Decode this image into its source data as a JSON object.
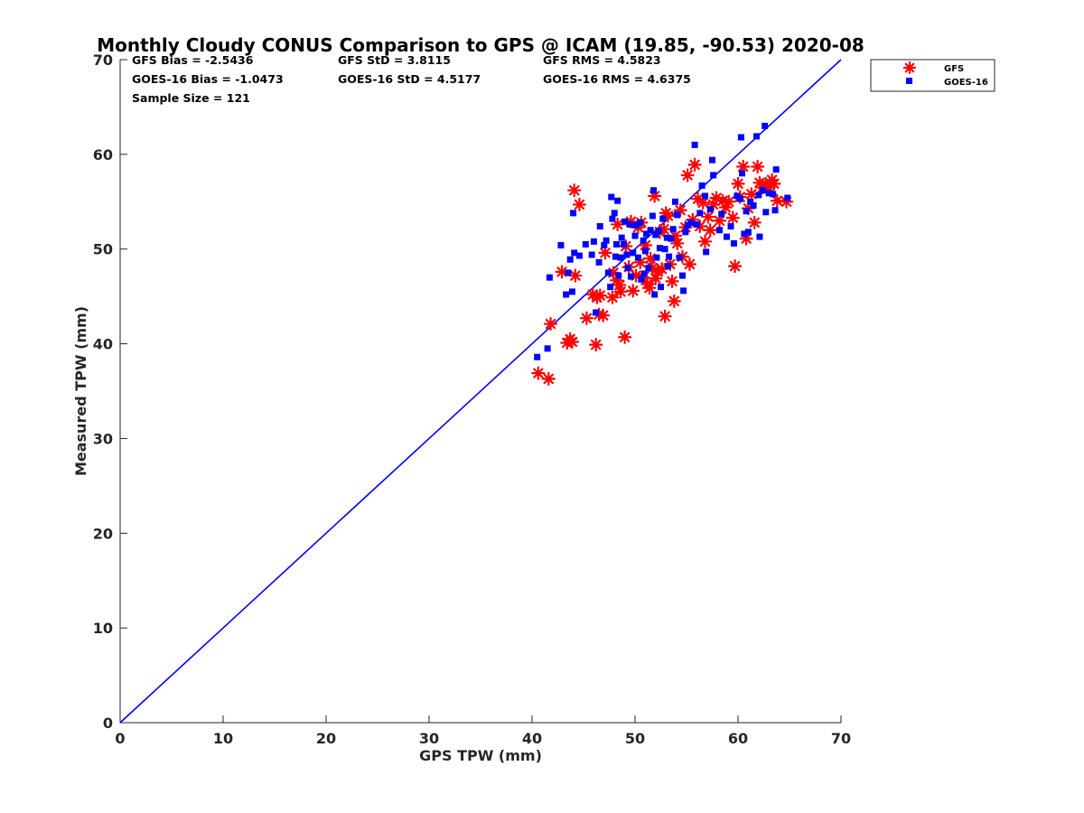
{
  "chart_data": {
    "type": "scatter",
    "title": "Monthly Cloudy CONUS Comparison to GPS @ ICAM (19.85, -90.53) 2020-08",
    "xlabel": "GPS TPW (mm)",
    "ylabel": "Measured TPW (mm)",
    "xlim": [
      0,
      70
    ],
    "ylim": [
      0,
      70
    ],
    "xticks": [
      "0",
      "10",
      "20",
      "30",
      "40",
      "50",
      "60",
      "70"
    ],
    "yticks": [
      "0",
      "10",
      "20",
      "30",
      "40",
      "50",
      "60",
      "70"
    ],
    "stats": [
      [
        "GFS Bias = -2.5436",
        "GFS StD = 3.8115",
        "GFS RMS = 4.5823"
      ],
      [
        "GOES-16 Bias = -1.0473",
        "GOES-16 StD = 4.5177",
        "GOES-16 RMS = 4.6375"
      ],
      [
        "Sample Size = 121"
      ]
    ],
    "legend_position": "outside-top-right",
    "reference_line": {
      "name": "1:1",
      "x": [
        0,
        70
      ],
      "y": [
        0,
        70
      ],
      "color": "#0000ff"
    },
    "series": [
      {
        "name": "GFS",
        "marker": "asterisk",
        "color": "#ff0000",
        "points": [
          [
            40.6,
            36.9
          ],
          [
            41.6,
            36.3
          ],
          [
            41.8,
            42.1
          ],
          [
            42.9,
            47.6
          ],
          [
            43.4,
            40.1
          ],
          [
            43.7,
            40.5
          ],
          [
            43.9,
            40.2
          ],
          [
            44.1,
            56.2
          ],
          [
            44.2,
            47.2
          ],
          [
            44.6,
            54.7
          ],
          [
            45.3,
            42.7
          ],
          [
            45.9,
            45.2
          ],
          [
            46.2,
            39.9
          ],
          [
            46.3,
            44.9
          ],
          [
            46.5,
            43.1
          ],
          [
            46.6,
            45.1
          ],
          [
            46.9,
            43.0
          ],
          [
            47.1,
            49.6
          ],
          [
            47.8,
            44.9
          ],
          [
            47.9,
            47.5
          ],
          [
            48.2,
            46.7
          ],
          [
            48.3,
            52.6
          ],
          [
            48.5,
            46.2
          ],
          [
            48.6,
            45.5
          ],
          [
            49.0,
            40.7
          ],
          [
            49.1,
            50.3
          ],
          [
            49.4,
            48.1
          ],
          [
            49.6,
            52.9
          ],
          [
            49.8,
            45.6
          ],
          [
            50.1,
            47.2
          ],
          [
            50.3,
            52.3
          ],
          [
            50.5,
            48.6
          ],
          [
            50.8,
            47.0
          ],
          [
            51.0,
            50.4
          ],
          [
            51.2,
            46.3
          ],
          [
            51.4,
            45.9
          ],
          [
            51.5,
            49.0
          ],
          [
            51.7,
            48.0
          ],
          [
            51.9,
            55.6
          ],
          [
            52.0,
            46.9
          ],
          [
            52.2,
            47.6
          ],
          [
            52.4,
            51.8
          ],
          [
            52.6,
            47.9
          ],
          [
            52.8,
            52.1
          ],
          [
            52.9,
            42.9
          ],
          [
            53.0,
            53.8
          ],
          [
            53.2,
            53.5
          ],
          [
            53.4,
            48.4
          ],
          [
            53.6,
            46.6
          ],
          [
            53.8,
            44.5
          ],
          [
            53.9,
            51.4
          ],
          [
            54.1,
            50.6
          ],
          [
            54.4,
            54.1
          ],
          [
            54.6,
            49.2
          ],
          [
            54.9,
            52.3
          ],
          [
            55.1,
            57.8
          ],
          [
            55.3,
            48.4
          ],
          [
            55.6,
            53.1
          ],
          [
            55.8,
            58.9
          ],
          [
            56.1,
            55.3
          ],
          [
            56.3,
            52.4
          ],
          [
            56.6,
            54.9
          ],
          [
            56.8,
            50.8
          ],
          [
            57.1,
            53.4
          ],
          [
            57.3,
            52.0
          ],
          [
            57.6,
            54.7
          ],
          [
            57.9,
            55.4
          ],
          [
            58.2,
            53.0
          ],
          [
            58.5,
            55.1
          ],
          [
            58.8,
            54.4
          ],
          [
            59.1,
            55.0
          ],
          [
            59.5,
            53.3
          ],
          [
            59.7,
            48.2
          ],
          [
            60.0,
            56.9
          ],
          [
            60.2,
            55.5
          ],
          [
            60.5,
            58.7
          ],
          [
            60.8,
            51.1
          ],
          [
            61.0,
            54.3
          ],
          [
            61.3,
            55.8
          ],
          [
            61.6,
            52.8
          ],
          [
            61.9,
            58.7
          ],
          [
            62.1,
            57.0
          ],
          [
            62.4,
            56.5
          ],
          [
            62.7,
            56.9
          ],
          [
            63.0,
            56.5
          ],
          [
            63.3,
            57.3
          ],
          [
            63.5,
            56.9
          ],
          [
            63.8,
            55.1
          ],
          [
            64.7,
            55.0
          ],
          [
            50.6,
            52.8
          ]
        ]
      },
      {
        "name": "GOES-16",
        "marker": "square",
        "color": "#0000ff",
        "points": [
          [
            40.5,
            38.6
          ],
          [
            41.5,
            39.5
          ],
          [
            41.7,
            47.0
          ],
          [
            42.8,
            50.4
          ],
          [
            43.3,
            45.2
          ],
          [
            43.5,
            47.5
          ],
          [
            43.7,
            48.9
          ],
          [
            43.9,
            45.5
          ],
          [
            44.0,
            53.8
          ],
          [
            44.1,
            49.6
          ],
          [
            44.6,
            49.3
          ],
          [
            45.2,
            50.5
          ],
          [
            45.8,
            49.4
          ],
          [
            46.0,
            50.8
          ],
          [
            46.2,
            43.3
          ],
          [
            46.5,
            48.6
          ],
          [
            46.6,
            52.4
          ],
          [
            47.0,
            50.4
          ],
          [
            47.2,
            50.9
          ],
          [
            47.4,
            47.5
          ],
          [
            47.6,
            46.0
          ],
          [
            47.7,
            55.5
          ],
          [
            47.8,
            53.2
          ],
          [
            48.0,
            53.8
          ],
          [
            48.1,
            49.2
          ],
          [
            48.2,
            50.5
          ],
          [
            48.3,
            55.1
          ],
          [
            48.4,
            47.2
          ],
          [
            48.6,
            49.1
          ],
          [
            48.7,
            51.2
          ],
          [
            48.9,
            50.5
          ],
          [
            49.0,
            52.9
          ],
          [
            49.2,
            49.4
          ],
          [
            49.3,
            48.0
          ],
          [
            49.5,
            52.6
          ],
          [
            49.6,
            47.1
          ],
          [
            49.8,
            49.6
          ],
          [
            50.0,
            51.4
          ],
          [
            50.1,
            52.5
          ],
          [
            50.3,
            49.1
          ],
          [
            50.5,
            52.8
          ],
          [
            50.6,
            46.8
          ],
          [
            50.8,
            50.9
          ],
          [
            51.0,
            49.8
          ],
          [
            51.1,
            51.6
          ],
          [
            51.3,
            48.0
          ],
          [
            51.5,
            52.0
          ],
          [
            51.7,
            53.5
          ],
          [
            51.8,
            56.2
          ],
          [
            51.9,
            45.2
          ],
          [
            52.0,
            51.5
          ],
          [
            52.1,
            49.1
          ],
          [
            52.3,
            51.9
          ],
          [
            52.5,
            46.0
          ],
          [
            52.7,
            53.2
          ],
          [
            52.9,
            50.0
          ],
          [
            53.1,
            51.2
          ],
          [
            53.3,
            49.2
          ],
          [
            53.5,
            51.1
          ],
          [
            53.7,
            52.1
          ],
          [
            53.9,
            55.0
          ],
          [
            54.1,
            53.6
          ],
          [
            54.3,
            49.1
          ],
          [
            54.6,
            47.2
          ],
          [
            54.7,
            45.6
          ],
          [
            54.9,
            51.8
          ],
          [
            55.1,
            52.5
          ],
          [
            55.4,
            52.8
          ],
          [
            55.8,
            61.0
          ],
          [
            56.0,
            52.6
          ],
          [
            56.3,
            53.8
          ],
          [
            56.5,
            56.7
          ],
          [
            56.8,
            55.6
          ],
          [
            56.9,
            49.7
          ],
          [
            57.3,
            54.2
          ],
          [
            57.5,
            59.4
          ],
          [
            57.6,
            57.8
          ],
          [
            58.2,
            52.0
          ],
          [
            58.4,
            53.7
          ],
          [
            58.9,
            51.3
          ],
          [
            59.3,
            52.4
          ],
          [
            59.6,
            50.6
          ],
          [
            59.9,
            55.6
          ],
          [
            60.2,
            55.3
          ],
          [
            60.4,
            58.0
          ],
          [
            60.3,
            61.8
          ],
          [
            60.6,
            51.6
          ],
          [
            60.8,
            54.0
          ],
          [
            61.0,
            51.8
          ],
          [
            61.2,
            55.0
          ],
          [
            61.5,
            54.6
          ],
          [
            61.8,
            61.9
          ],
          [
            62.0,
            55.7
          ],
          [
            62.1,
            51.3
          ],
          [
            62.4,
            56.2
          ],
          [
            62.6,
            63.0
          ],
          [
            62.7,
            53.9
          ],
          [
            63.0,
            55.9
          ],
          [
            63.4,
            55.8
          ],
          [
            63.6,
            54.1
          ],
          [
            63.7,
            58.4
          ],
          [
            64.8,
            55.4
          ],
          [
            53.2,
            48.2
          ],
          [
            52.4,
            50.1
          ],
          [
            50.9,
            47.4
          ]
        ]
      }
    ]
  }
}
